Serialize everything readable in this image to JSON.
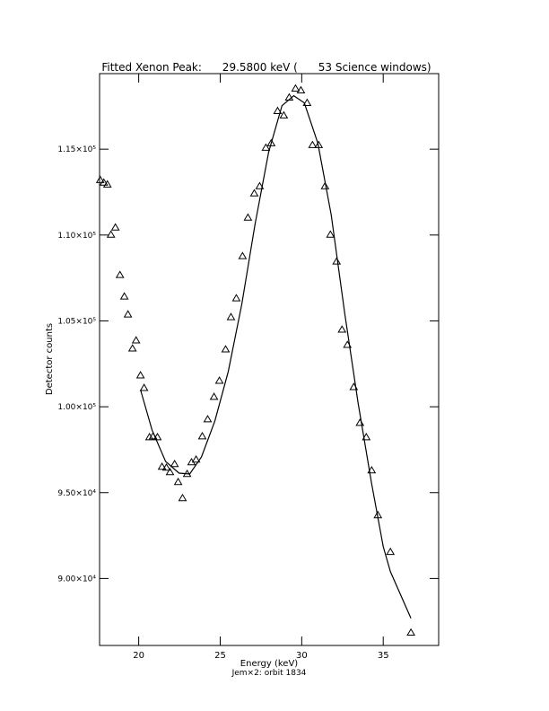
{
  "chart_data": {
    "type": "scatter",
    "title": "Fitted Xenon Peak:      29.5800 keV (      53 Science windows)",
    "x_label": "Energy (keV)",
    "x_label_2": "Jem×2: orbit 1834",
    "y_label": "Detector counts",
    "xlim": [
      17.6,
      38.4
    ],
    "ylim": [
      86100,
      119400
    ],
    "xticks": [
      20,
      25,
      30,
      35
    ],
    "yticks": [
      {
        "value": 90000,
        "label": "9.00×10⁴"
      },
      {
        "value": 95000,
        "label": "9.50×10⁴"
      },
      {
        "value": 100000,
        "label": "1.00×10⁵"
      },
      {
        "value": 105000,
        "label": "1.05×10⁵"
      },
      {
        "value": 110000,
        "label": "1.10×10⁵"
      },
      {
        "value": 115000,
        "label": "1.15×10⁵"
      }
    ],
    "series": [
      {
        "kind": "points",
        "color": "#000000",
        "x": [
          17.64,
          17.86,
          18.08,
          18.3,
          18.57,
          18.85,
          19.12,
          19.34,
          19.62,
          19.84,
          20.11,
          20.33,
          20.66,
          20.88,
          21.15,
          21.43,
          21.7,
          21.92,
          22.2,
          22.42,
          22.69,
          22.97,
          23.24,
          23.52,
          23.9,
          24.23,
          24.62,
          24.95,
          25.33,
          25.66,
          25.99,
          26.37,
          26.7,
          27.09,
          27.42,
          27.8,
          28.13,
          28.52,
          28.9,
          29.23,
          29.62,
          29.95,
          30.33,
          30.66,
          31.04,
          31.43,
          31.76,
          32.14,
          32.47,
          32.8,
          33.19,
          33.57,
          33.96,
          34.29,
          34.67,
          35.44,
          36.7
        ],
        "values": [
          113204,
          113048,
          112943,
          110020,
          110438,
          107672,
          106419,
          105376,
          103392,
          103862,
          101827,
          101096,
          98226,
          98278,
          98226,
          96503,
          96451,
          96190,
          96660,
          95616,
          94677,
          96086,
          96764,
          96921,
          98278,
          99269,
          100574,
          101513,
          103340,
          105219,
          106315,
          108768,
          111012,
          112421,
          112839,
          115083,
          115344,
          117223,
          116962,
          118006,
          118528,
          118424,
          117693,
          115240,
          115240,
          112839,
          110020,
          108455,
          104488,
          103601,
          101148,
          99061,
          98226,
          96294,
          93685,
          91545,
          86848
        ]
      },
      {
        "kind": "line",
        "color": "#000000",
        "x": [
          20.11,
          20.82,
          21.65,
          22.47,
          23.13,
          23.85,
          24.67,
          25.49,
          26.32,
          27.14,
          27.97,
          28.79,
          29.51,
          30.16,
          30.99,
          31.81,
          32.64,
          33.46,
          34.29,
          35.0,
          35.44,
          36.7
        ],
        "values": [
          100992,
          98643,
          96816,
          96138,
          96086,
          97077,
          99165,
          102035,
          105950,
          110647,
          114822,
          117536,
          118111,
          117693,
          115344,
          111169,
          105428,
          100209,
          95512,
          91858,
          90397,
          87683
        ]
      }
    ]
  }
}
